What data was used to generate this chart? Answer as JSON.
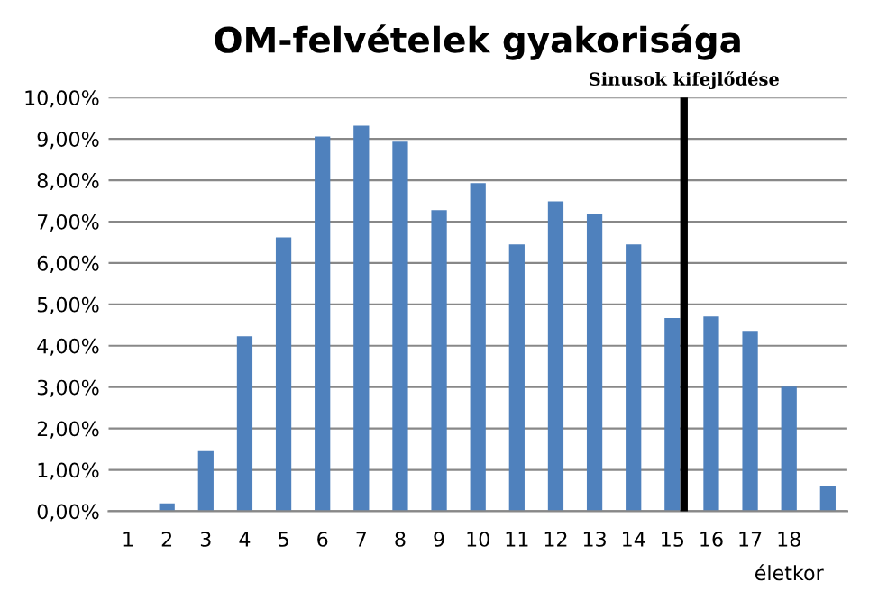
{
  "chart_data": {
    "type": "bar",
    "title": "OM-felvételek gyakorisága",
    "xlabel": "életkor",
    "x": [
      1,
      2,
      3,
      4,
      5,
      6,
      7,
      8,
      9,
      10,
      11,
      12,
      13,
      14,
      15,
      16,
      17,
      18,
      19
    ],
    "values": [
      0,
      0.19,
      1.45,
      4.23,
      6.62,
      9.06,
      9.32,
      8.93,
      7.28,
      7.93,
      6.45,
      7.49,
      7.19,
      6.45,
      4.67,
      4.71,
      4.36,
      3.01,
      0.62
    ],
    "color": "#4f81bd",
    "xlim": [
      0.5,
      19.5
    ],
    "xticks": [
      1,
      2,
      3,
      4,
      5,
      6,
      7,
      8,
      9,
      10,
      11,
      12,
      13,
      14,
      15,
      16,
      17,
      18
    ],
    "ylim": [
      0,
      10
    ],
    "yticks": [
      {
        "value": 0,
        "label": "0,00%"
      },
      {
        "value": 1,
        "label": "1,00%"
      },
      {
        "value": 2,
        "label": "2,00%"
      },
      {
        "value": 3,
        "label": "3,00%"
      },
      {
        "value": 4,
        "label": "4,00%"
      },
      {
        "value": 5,
        "label": "5,00%"
      },
      {
        "value": 6,
        "label": "6,00%"
      },
      {
        "value": 7,
        "label": "7,00%"
      },
      {
        "value": 8,
        "label": "8,00%"
      },
      {
        "value": 9,
        "label": "9,00%"
      },
      {
        "value": 10,
        "label": "10,00%"
      }
    ],
    "ref_lines": [
      {
        "axis": "x",
        "value": 15.3,
        "label": "Sinusok kifejlődése",
        "color": "#000000"
      }
    ],
    "grid": "y",
    "legend": false
  }
}
